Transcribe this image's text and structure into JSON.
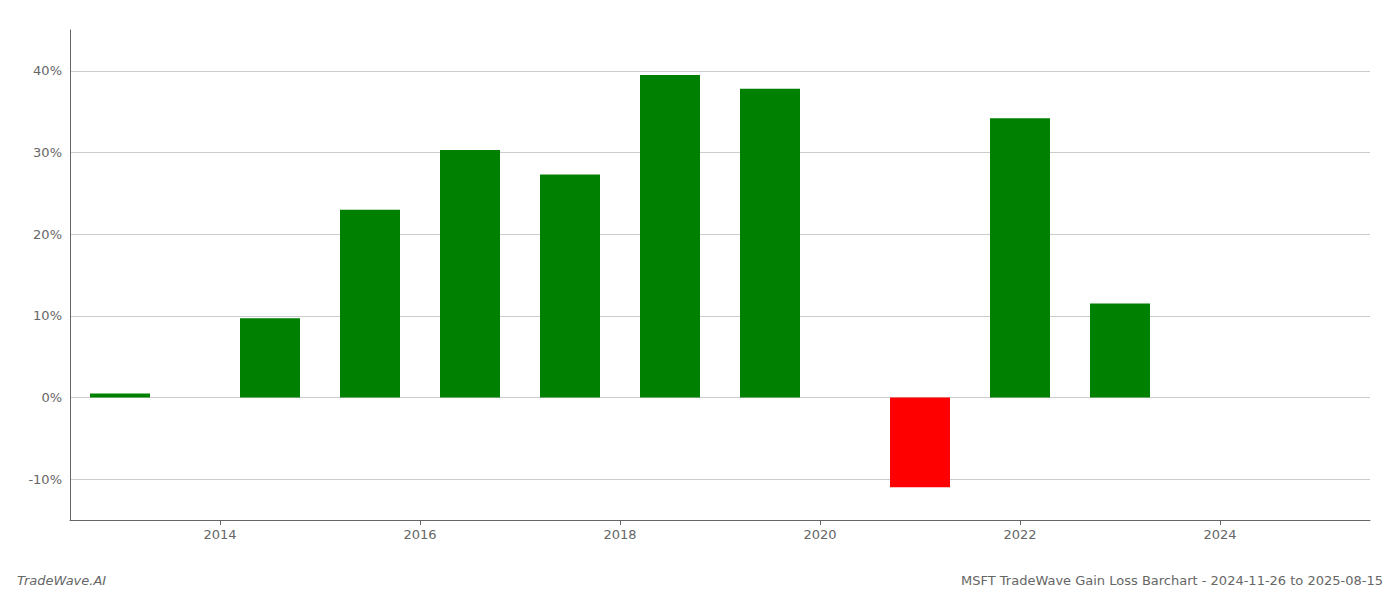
{
  "chart_data": {
    "type": "bar",
    "title": "MSFT TradeWave Gain Loss Barchart - 2024-11-26 to 2025-08-15",
    "annotations": [
      "TradeWave.AI"
    ],
    "x": [
      2013,
      2014.5,
      2015.5,
      2016.5,
      2017.5,
      2018.5,
      2019.5,
      2021,
      2022,
      2023,
      2024
    ],
    "values": [
      0.5,
      9.7,
      23.0,
      30.3,
      27.3,
      39.5,
      37.8,
      -11.0,
      34.2,
      11.5,
      0
    ],
    "colors": [
      "#008000",
      "#008000",
      "#008000",
      "#008000",
      "#008000",
      "#008000",
      "#008000",
      "#ff0000",
      "#008000",
      "#008000",
      "#008000"
    ],
    "xlim": [
      2012.5,
      2025.5
    ],
    "xticks": [
      2014,
      2016,
      2018,
      2020,
      2022,
      2024
    ],
    "ylim": [
      -15,
      45
    ],
    "yticks": [
      {
        "value": -10,
        "label": "-10%"
      },
      {
        "value": 0,
        "label": "0%"
      },
      {
        "value": 10,
        "label": "10%"
      },
      {
        "value": 20,
        "label": "20%"
      },
      {
        "value": 30,
        "label": "30%"
      },
      {
        "value": 40,
        "label": "40%"
      }
    ],
    "grid": true
  }
}
